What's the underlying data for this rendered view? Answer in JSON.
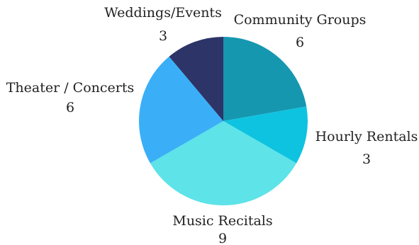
{
  "chart_data": {
    "type": "pie",
    "categories": [
      "Community Groups",
      "Hourly Rentals",
      "Music Recitals",
      "Theater / Concerts",
      "Weddings/Events"
    ],
    "values": [
      6,
      3,
      9,
      6,
      3
    ],
    "labels": [
      {
        "name": "Community Groups",
        "value": "6"
      },
      {
        "name": "Hourly Rentals",
        "value": "3"
      },
      {
        "name": "Music Recitals",
        "value": "9"
      },
      {
        "name": "Theater / Concerts",
        "value": "6"
      },
      {
        "name": "Weddings/Events",
        "value": "3"
      }
    ],
    "colors": [
      "#1597b0",
      "#0ec3e0",
      "#5de3e8",
      "#3aaff8",
      "#2c3468"
    ],
    "start": "12 o'clock",
    "direction": "clockwise",
    "legend": "none"
  }
}
